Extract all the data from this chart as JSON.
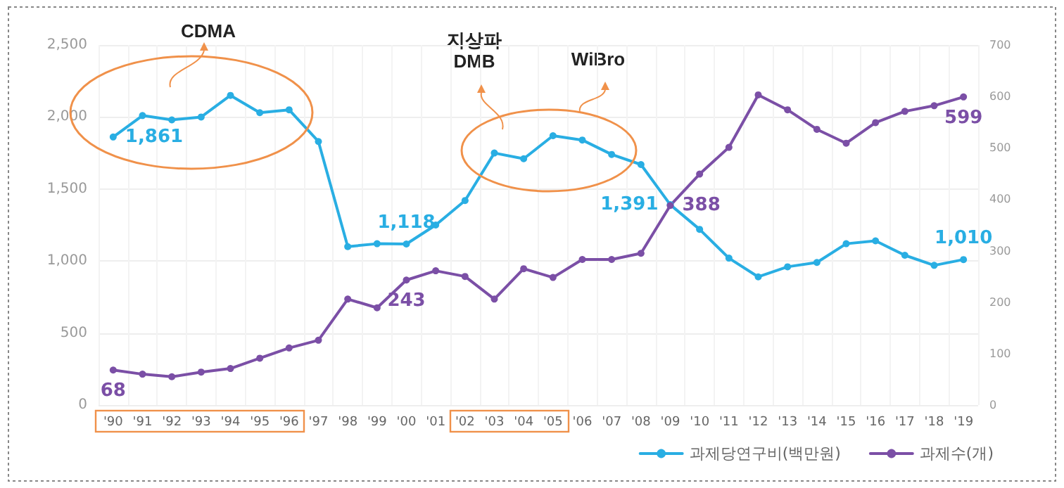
{
  "chart_data": {
    "type": "line",
    "categories": [
      "'90",
      "'91",
      "'92",
      "'93",
      "'94",
      "'95",
      "'96",
      "'97",
      "'98",
      "'99",
      "'00",
      "'01",
      "'02",
      "'03",
      "'04",
      "'05",
      "'06",
      "'07",
      "'08",
      "'09",
      "'10",
      "'11",
      "'12",
      "'13",
      "'14",
      "'15",
      "'16",
      "'17",
      "'18",
      "'19"
    ],
    "series": [
      {
        "name": "과제당연구비(백만원)",
        "color": "#29aee3",
        "values": [
          1861,
          2010,
          1980,
          2000,
          2150,
          2030,
          2050,
          1830,
          1100,
          1120,
          1118,
          1250,
          1420,
          1750,
          1710,
          1870,
          1840,
          1740,
          1670,
          1391,
          1220,
          1020,
          890,
          960,
          990,
          1120,
          1140,
          1040,
          970,
          1010
        ],
        "value_labels": [
          "1,861",
          null,
          null,
          null,
          null,
          null,
          null,
          null,
          null,
          null,
          "1,118",
          null,
          null,
          null,
          null,
          null,
          null,
          null,
          null,
          "1,391",
          null,
          null,
          null,
          null,
          null,
          null,
          null,
          null,
          null,
          "1,010"
        ]
      },
      {
        "name": "과제수(개)",
        "color": "#7b4fa6",
        "axis": "y2",
        "values": [
          68,
          60,
          55,
          64,
          71,
          91,
          111,
          126,
          206,
          189,
          243,
          261,
          250,
          206,
          265,
          248,
          283,
          283,
          295,
          388,
          449,
          501,
          603,
          574,
          536,
          509,
          549,
          571,
          582,
          599
        ],
        "value_labels": [
          "68",
          null,
          null,
          null,
          null,
          null,
          null,
          null,
          null,
          null,
          "243",
          null,
          null,
          null,
          null,
          null,
          null,
          null,
          null,
          "388",
          null,
          null,
          null,
          null,
          null,
          null,
          null,
          null,
          null,
          "599"
        ]
      }
    ],
    "ylim": [
      0,
      2500
    ],
    "yticks": [
      0,
      {
        "value": 500,
        "label": "500"
      },
      {
        "value": 1000,
        "label": "1,000"
      },
      {
        "value": 1500,
        "label": "1,500"
      },
      {
        "value": 2000,
        "label": "2,000"
      },
      {
        "value": 2500,
        "label": "2,500"
      }
    ],
    "y2lim": [
      0,
      700
    ],
    "y2ticks": [
      0,
      100,
      200,
      300,
      400,
      500,
      600,
      700
    ],
    "annotations": [
      "CDMA",
      "지상파\nDMB",
      "WiBro"
    ],
    "grid": true,
    "legend": "bottom right",
    "marker": "circle",
    "line_style": "solid"
  }
}
